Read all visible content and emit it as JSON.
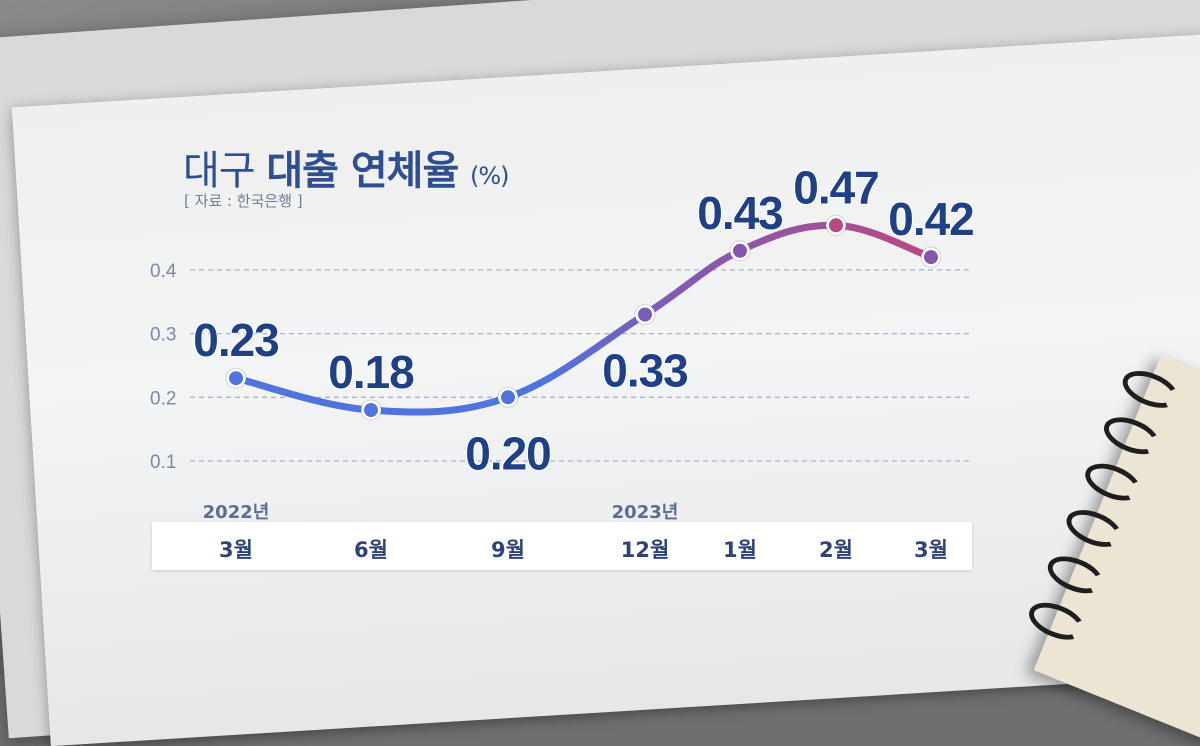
{
  "chart_data": {
    "type": "line",
    "title_light": "대구",
    "title_bold": "대출 연체율",
    "unit": "(%)",
    "source": "[ 자료 : 한국은행 ]",
    "year_labels": [
      {
        "label": "2022년",
        "at_index": 0
      },
      {
        "label": "2023년",
        "at_index": 3
      }
    ],
    "categories": [
      "3월",
      "6월",
      "9월",
      "12월",
      "1월",
      "2월",
      "3월"
    ],
    "values": [
      0.23,
      0.18,
      0.2,
      0.33,
      0.43,
      0.47,
      0.42
    ],
    "value_labels": [
      "0.23",
      "0.18",
      "0.20",
      "0.33",
      "0.43",
      "0.47",
      "0.42"
    ],
    "label_positions": [
      "above",
      "above",
      "below",
      "below",
      "above",
      "above",
      "above"
    ],
    "y_ticks": [
      0.1,
      0.2,
      0.3,
      0.4
    ],
    "y_tick_labels": [
      "0.1",
      "0.2",
      "0.3",
      "0.4"
    ],
    "ylim": [
      0.1,
      0.4
    ],
    "grid": true,
    "colors": {
      "line_start": "#4f74dc",
      "line_mid": "#7b5cb8",
      "line_end": "#b84a80",
      "points": [
        "#4f74dc",
        "#4f74dc",
        "#4f74dc",
        "#7b5cb8",
        "#8455ac",
        "#b44a82",
        "#8455ac"
      ],
      "label": "#1f3f86",
      "tick": "#7d8aa5"
    }
  }
}
